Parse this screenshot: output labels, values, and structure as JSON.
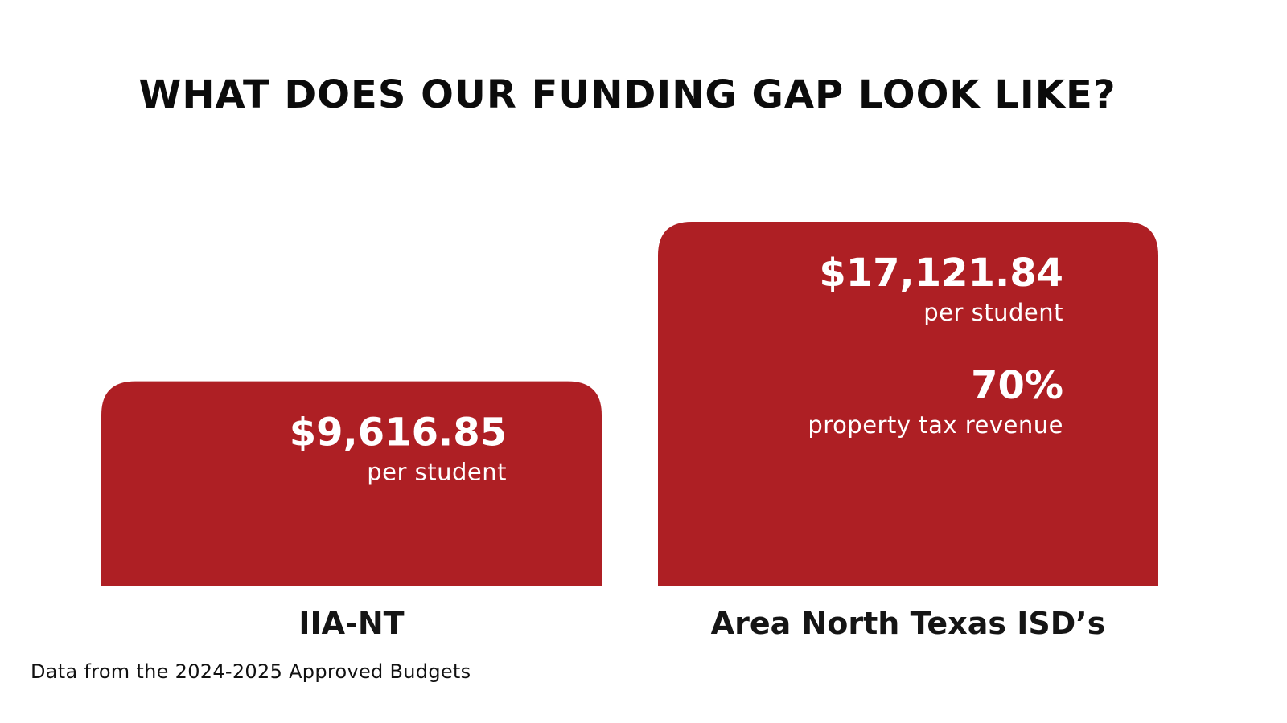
{
  "header": {
    "title": "WHAT DOES OUR FUNDING GAP LOOK LIKE?"
  },
  "footer": {
    "source": "Data from the 2024-2025 Approved Budgets"
  },
  "colors": {
    "bar": "#ae1f24",
    "text_on_bar": "#ffffff",
    "label": "#151515"
  },
  "chart_data": {
    "type": "bar",
    "title": "WHAT DOES OUR FUNDING GAP LOOK LIKE?",
    "categories": [
      "IIA-NT",
      "Area North Texas ISD’s"
    ],
    "values": [
      9616.85,
      17121.84
    ],
    "unit": "per student",
    "ylim": [
      0,
      17121.84
    ],
    "grid": false,
    "bars": [
      {
        "category": "IIA-NT",
        "value": 9616.85,
        "labels": [
          {
            "value": "$9,616.85",
            "sub": "per student"
          }
        ]
      },
      {
        "category": "Area North Texas ISD’s",
        "value": 17121.84,
        "labels": [
          {
            "value": "$17,121.84",
            "sub": "per student"
          },
          {
            "value": "70%",
            "sub": "property tax revenue"
          }
        ]
      }
    ]
  }
}
